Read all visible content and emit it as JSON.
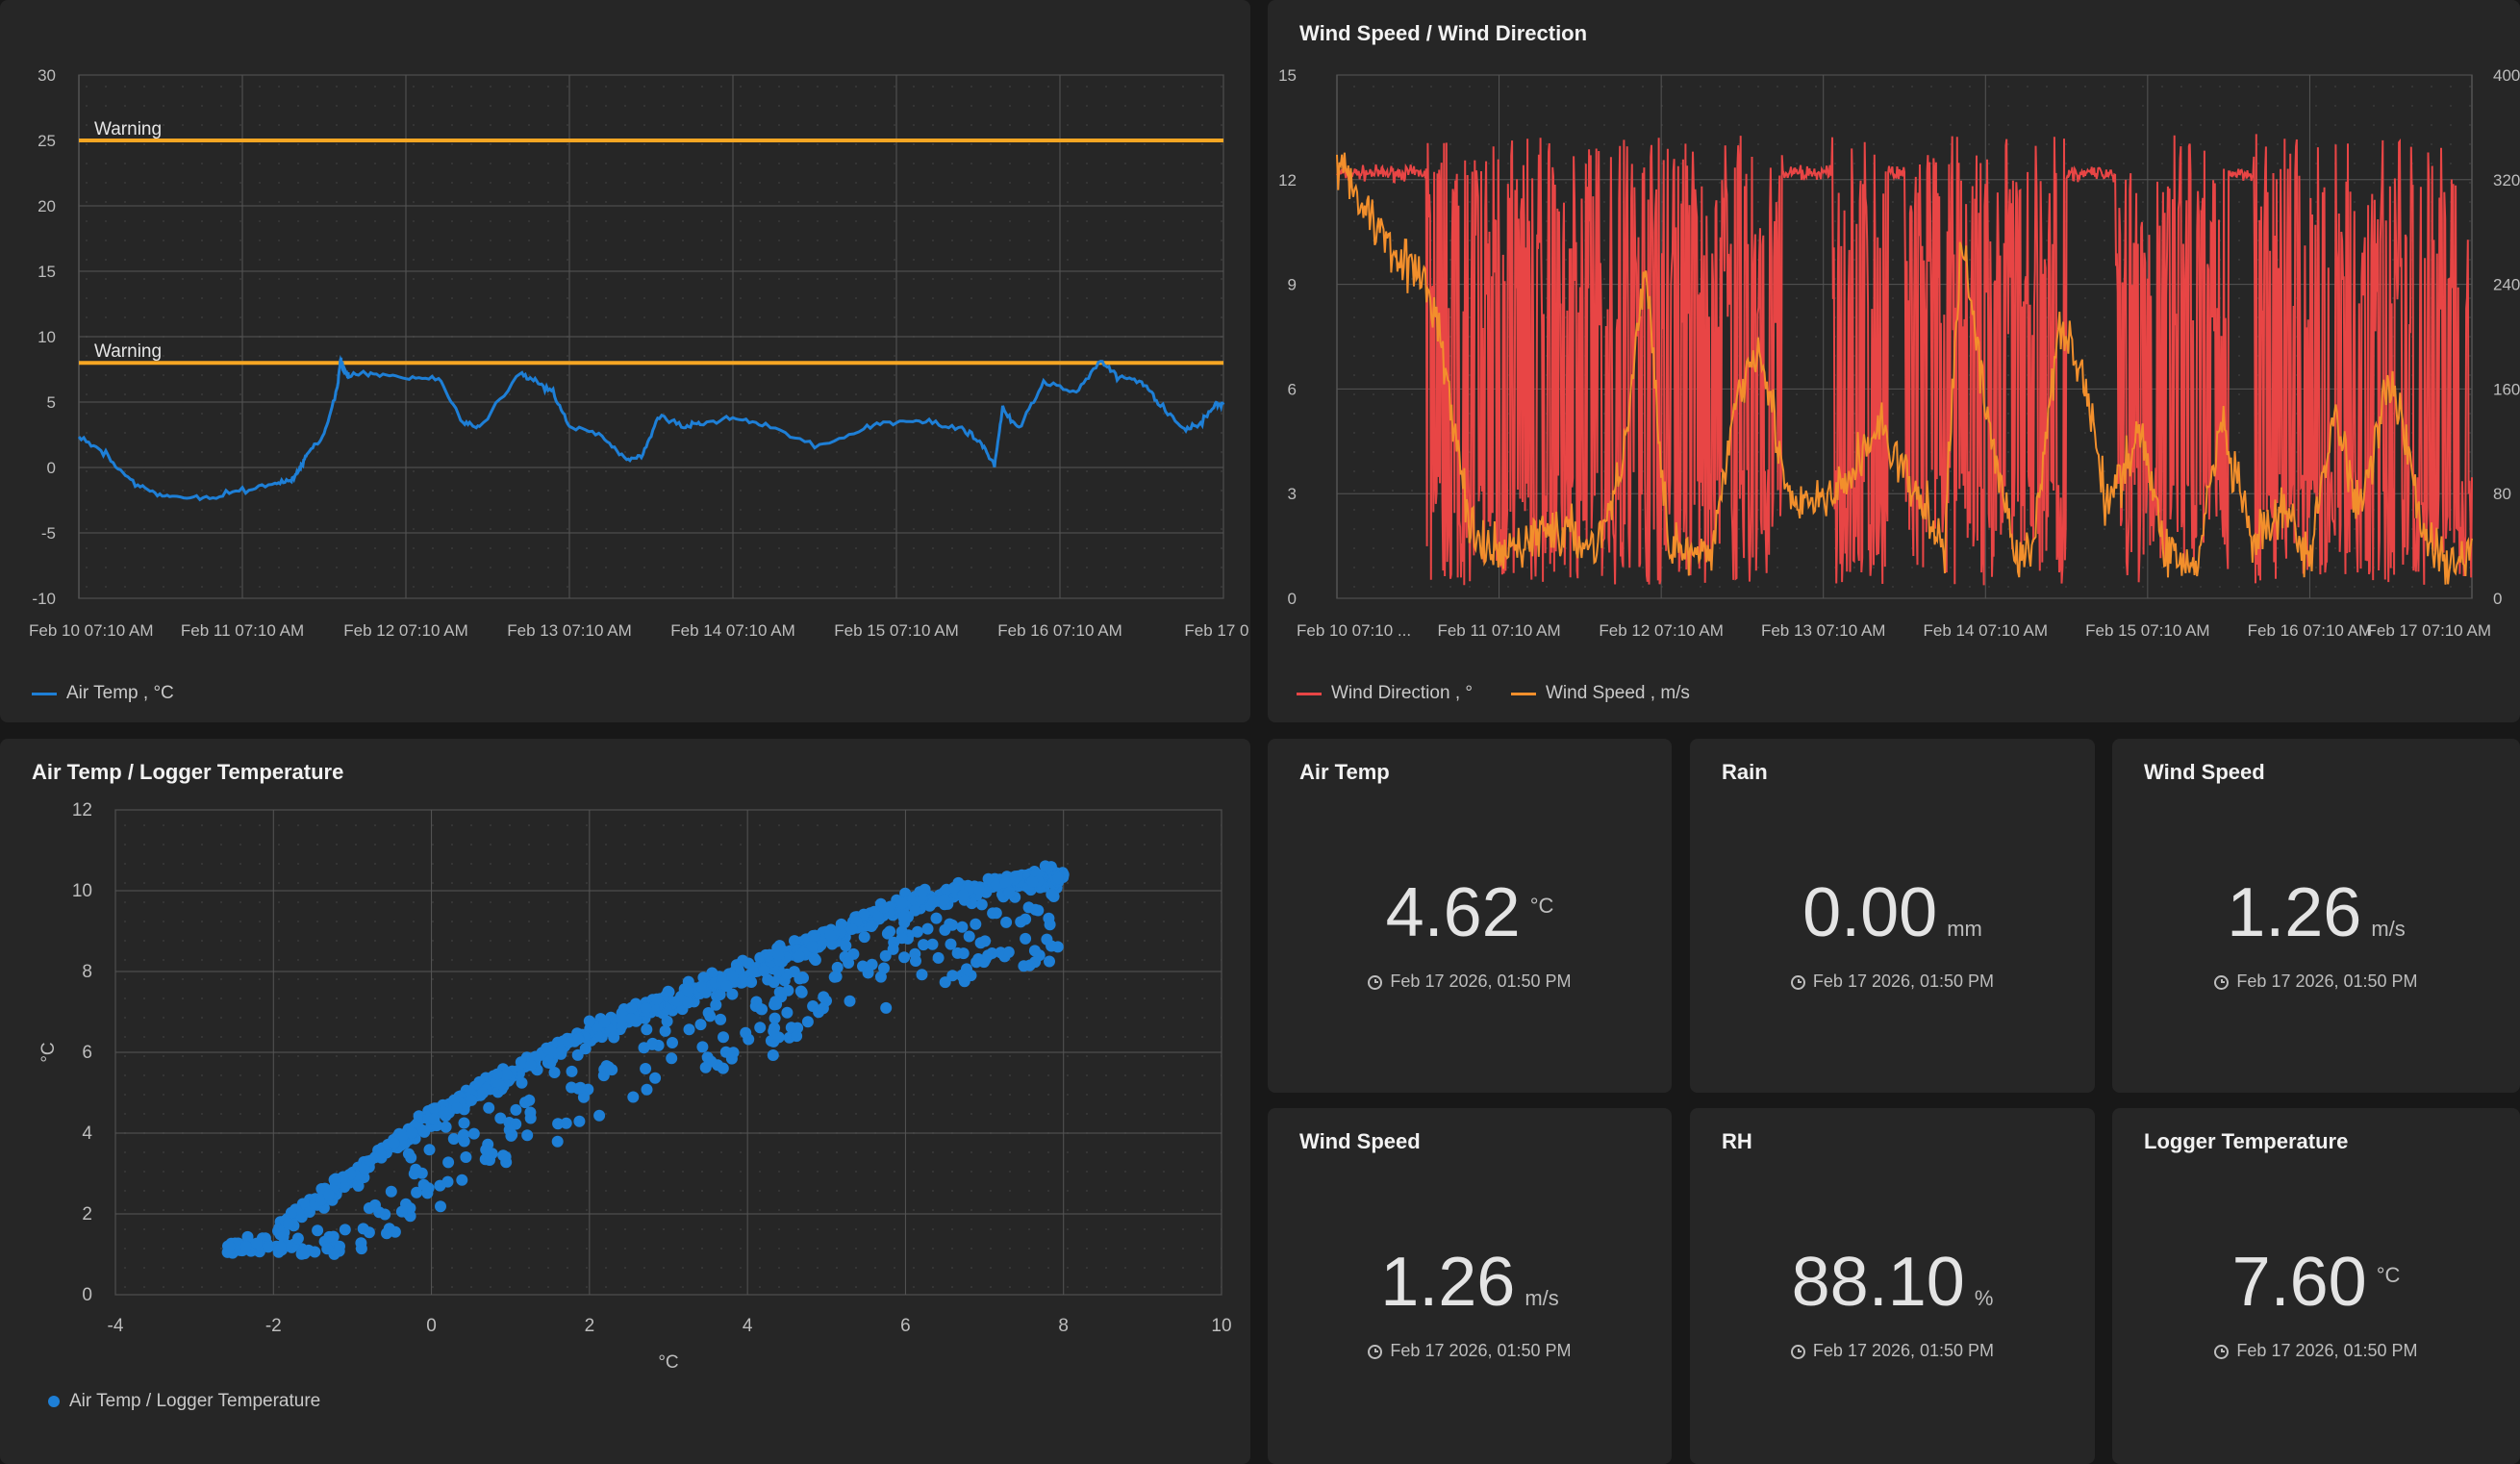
{
  "panels": {
    "air_temp_chart": {
      "title": "",
      "legend": "Air Temp , °C",
      "colors": {
        "series": "#1e7fd6",
        "threshold": "#f5a623"
      }
    },
    "wind_chart": {
      "title": "Wind Speed / Wind Direction",
      "legend": [
        "Wind Direction , °",
        "Wind Speed , m/s"
      ],
      "colors": {
        "direction": "#e84545",
        "speed": "#f28f2c"
      }
    },
    "scatter_chart": {
      "title": "Air Temp / Logger Temperature",
      "legend": "Air Temp / Logger Temperature",
      "colors": {
        "points": "#1e7fd6"
      }
    }
  },
  "cards": [
    {
      "title": "Air Temp",
      "value": "4.62",
      "unit": "°C",
      "time": "Feb 17 2026, 01:50 PM"
    },
    {
      "title": "Rain",
      "value": "0.00",
      "unit": "mm",
      "time": "Feb 17 2026, 01:50 PM"
    },
    {
      "title": "Wind Speed",
      "value": "1.26",
      "unit": "m/s",
      "time": "Feb 17 2026, 01:50 PM"
    },
    {
      "title": "Wind Speed",
      "value": "1.26",
      "unit": "m/s",
      "time": "Feb 17 2026, 01:50 PM"
    },
    {
      "title": "RH",
      "value": "88.10",
      "unit": "%",
      "time": "Feb 17 2026, 01:50 PM"
    },
    {
      "title": "Logger Temperature",
      "value": "7.60",
      "unit": "°C",
      "time": "Feb 17 2026, 01:50 PM"
    }
  ],
  "card_icon": "clock-icon",
  "chart_data": [
    {
      "type": "line",
      "title": "",
      "x_ticks": [
        "Feb 10 07:10 AM",
        "Feb 11 07:10 AM",
        "Feb 12 07:10 AM",
        "Feb 13 07:10 AM",
        "Feb 14 07:10 AM",
        "Feb 15 07:10 AM",
        "Feb 16 07:10 AM",
        "Feb 17 0..."
      ],
      "xlim_days": [
        0,
        7
      ],
      "ylim": [
        -10,
        30
      ],
      "y_ticks": [
        30,
        25,
        20,
        15,
        10,
        5,
        0,
        -5,
        -10
      ],
      "thresholds": [
        {
          "label": "Warning",
          "value": 25
        },
        {
          "label": "Warning",
          "value": 8
        }
      ],
      "grid": true,
      "legend_position": "bottom-left",
      "series": [
        {
          "name": "Air Temp , °C",
          "x": [
            0,
            0.15,
            0.3,
            0.45,
            0.6,
            0.8,
            1.0,
            1.2,
            1.3,
            1.35,
            1.4,
            1.5,
            1.58,
            1.6,
            1.62,
            1.65,
            1.8,
            2.0,
            2.2,
            2.35,
            2.45,
            2.7,
            2.8,
            2.9,
            3.0,
            3.2,
            3.35,
            3.45,
            3.55,
            3.7,
            3.8,
            4.0,
            4.2,
            4.5,
            4.8,
            5.0,
            5.2,
            5.4,
            5.52,
            5.6,
            5.65,
            5.75,
            5.9,
            6.1,
            6.25,
            6.35,
            6.5,
            6.6,
            6.75,
            6.85,
            6.95,
            7.0
          ],
          "y": [
            2.4,
            1.2,
            -0.8,
            -2.0,
            -2.2,
            -2.3,
            -1.8,
            -1.2,
            -1.0,
            -0.2,
            1.2,
            2.5,
            6.0,
            8.2,
            7.5,
            7.0,
            7.2,
            6.8,
            6.8,
            3.5,
            3.0,
            7.2,
            6.5,
            5.8,
            3.2,
            2.5,
            0.5,
            1.0,
            4.0,
            3.2,
            3.5,
            3.8,
            3.3,
            1.6,
            3.0,
            3.6,
            3.5,
            3.0,
            1.8,
            0.1,
            4.5,
            3.0,
            6.5,
            5.8,
            8.2,
            6.9,
            6.5,
            5.0,
            3.0,
            3.2,
            4.8,
            4.8
          ]
        }
      ]
    },
    {
      "type": "line",
      "title": "Wind Speed / Wind Direction",
      "x_ticks": [
        "Feb 10 07:10 ...",
        "Feb 11 07:10 AM",
        "Feb 12 07:10 AM",
        "Feb 13 07:10 AM",
        "Feb 14 07:10 AM",
        "Feb 15 07:10 AM",
        "Feb 16 07:10 AM",
        "Feb 17 07:10 AM"
      ],
      "xlim_days": [
        0,
        7
      ],
      "ylim_left": [
        0,
        15
      ],
      "y_ticks_left": [
        15,
        12,
        9,
        6,
        3,
        0
      ],
      "ylim_right": [
        0,
        400
      ],
      "y_ticks_right": [
        400,
        320,
        240,
        160,
        80,
        0
      ],
      "grid": true,
      "legend_position": "bottom-left",
      "series": [
        {
          "name": "Wind Direction , °",
          "axis": "right",
          "y_range_deg": [
            0,
            360
          ]
        },
        {
          "name": "Wind Speed , m/s",
          "axis": "left",
          "y_range_ms": [
            0,
            13.5
          ]
        }
      ]
    },
    {
      "type": "scatter",
      "title": "Air Temp / Logger Temperature",
      "xlabel": "°C",
      "ylabel": "°C",
      "xlim": [
        -4,
        10
      ],
      "ylim": [
        0,
        12
      ],
      "x_ticks": [
        -4,
        -2,
        0,
        2,
        4,
        6,
        8,
        10
      ],
      "y_ticks": [
        12,
        10,
        8,
        6,
        4,
        2,
        0
      ],
      "grid": true,
      "legend_position": "bottom-left",
      "series": [
        {
          "name": "Air Temp / Logger Temperature",
          "trend": {
            "x": [
              -2.6,
              -2,
              0,
              2,
              4,
              6,
              7,
              8
            ],
            "y": [
              1.0,
              1.5,
              4.4,
              6.5,
              8.0,
              9.7,
              10.1,
              10.4
            ]
          }
        }
      ]
    }
  ]
}
